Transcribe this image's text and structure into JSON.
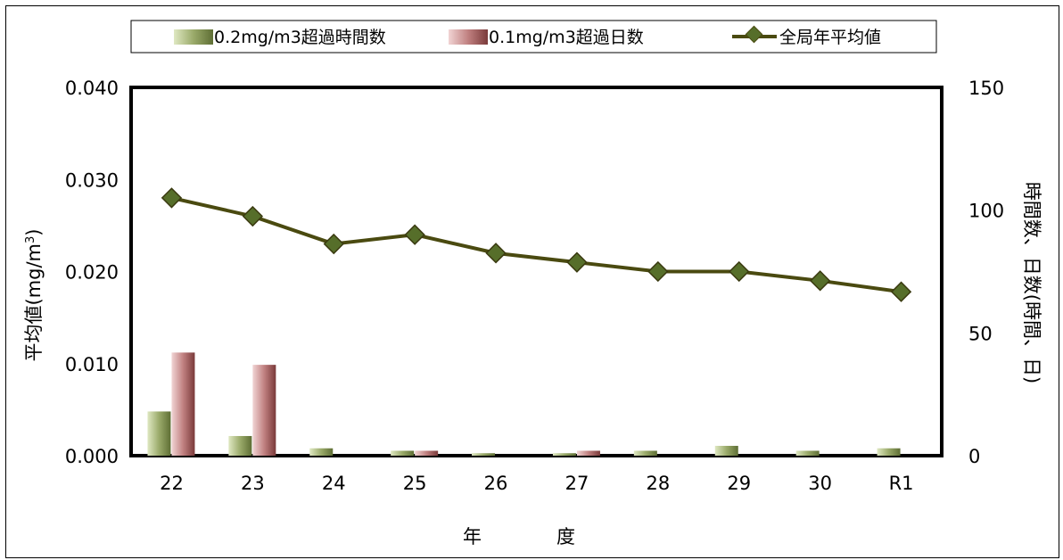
{
  "chart_data": {
    "type": "bar",
    "xlabel": "年　　　　度",
    "ylabel": "平均値(mg/m³)",
    "ylabel_main": "平均値(mg/m",
    "ylabel_sup": "3",
    "ylabel_close": ")",
    "y2label": "時間数、日数(時間、日)",
    "categories": [
      "22",
      "23",
      "24",
      "25",
      "26",
      "27",
      "28",
      "29",
      "30",
      "R1"
    ],
    "ylim": [
      0,
      0.04
    ],
    "y_ticks": [
      "0.000",
      "0.010",
      "0.020",
      "0.030",
      "0.040"
    ],
    "y2lim": [
      0,
      150
    ],
    "y2_ticks": [
      "0",
      "50",
      "100",
      "150"
    ],
    "legend_position": "top",
    "series": [
      {
        "name": "0.2mg/m3超過時間数",
        "type": "bar",
        "axis": "right",
        "color": "#9aaa6a",
        "values": [
          18,
          8,
          3,
          2,
          1,
          1,
          2,
          4,
          2,
          3
        ]
      },
      {
        "name": "0.1mg/m3超過日数",
        "type": "bar",
        "axis": "right",
        "color": "#b86a6a",
        "values": [
          42,
          37,
          0,
          2,
          0,
          2,
          0,
          0,
          0,
          0
        ]
      },
      {
        "name": "全局年平均値",
        "type": "line",
        "axis": "left",
        "color": "#4a4a10",
        "values": [
          0.028,
          0.026,
          0.023,
          0.024,
          0.022,
          0.021,
          0.02,
          0.02,
          0.019,
          0.0178
        ]
      }
    ]
  }
}
